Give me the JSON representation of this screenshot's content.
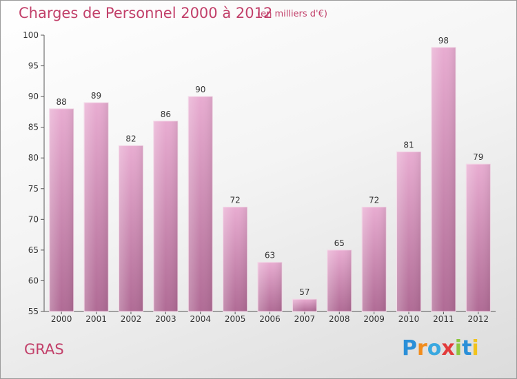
{
  "header": {
    "title": "Charges de Personnel 2000 à 2012",
    "subtitle": "(en milliers d'€)"
  },
  "footer": {
    "commune": "GRAS",
    "logo": "Proxiti"
  },
  "colors": {
    "title": "#c2406a",
    "bar_light": "#e6a8cf",
    "bar_dark": "#b8739c",
    "axis": "#333333"
  },
  "chart_data": {
    "type": "bar",
    "categories": [
      "2000",
      "2001",
      "2002",
      "2003",
      "2004",
      "2005",
      "2006",
      "2007",
      "2008",
      "2009",
      "2010",
      "2011",
      "2012"
    ],
    "values": [
      88,
      89,
      82,
      86,
      90,
      72,
      63,
      57,
      65,
      72,
      81,
      98,
      79
    ],
    "title": "Charges de Personnel 2000 à 2012",
    "subtitle": "(en milliers d'€)",
    "xlabel": "",
    "ylabel": "",
    "ylim": [
      55,
      100
    ],
    "yticks": [
      55,
      60,
      65,
      70,
      75,
      80,
      85,
      90,
      95,
      100
    ],
    "grid": false,
    "data_labels": true
  }
}
